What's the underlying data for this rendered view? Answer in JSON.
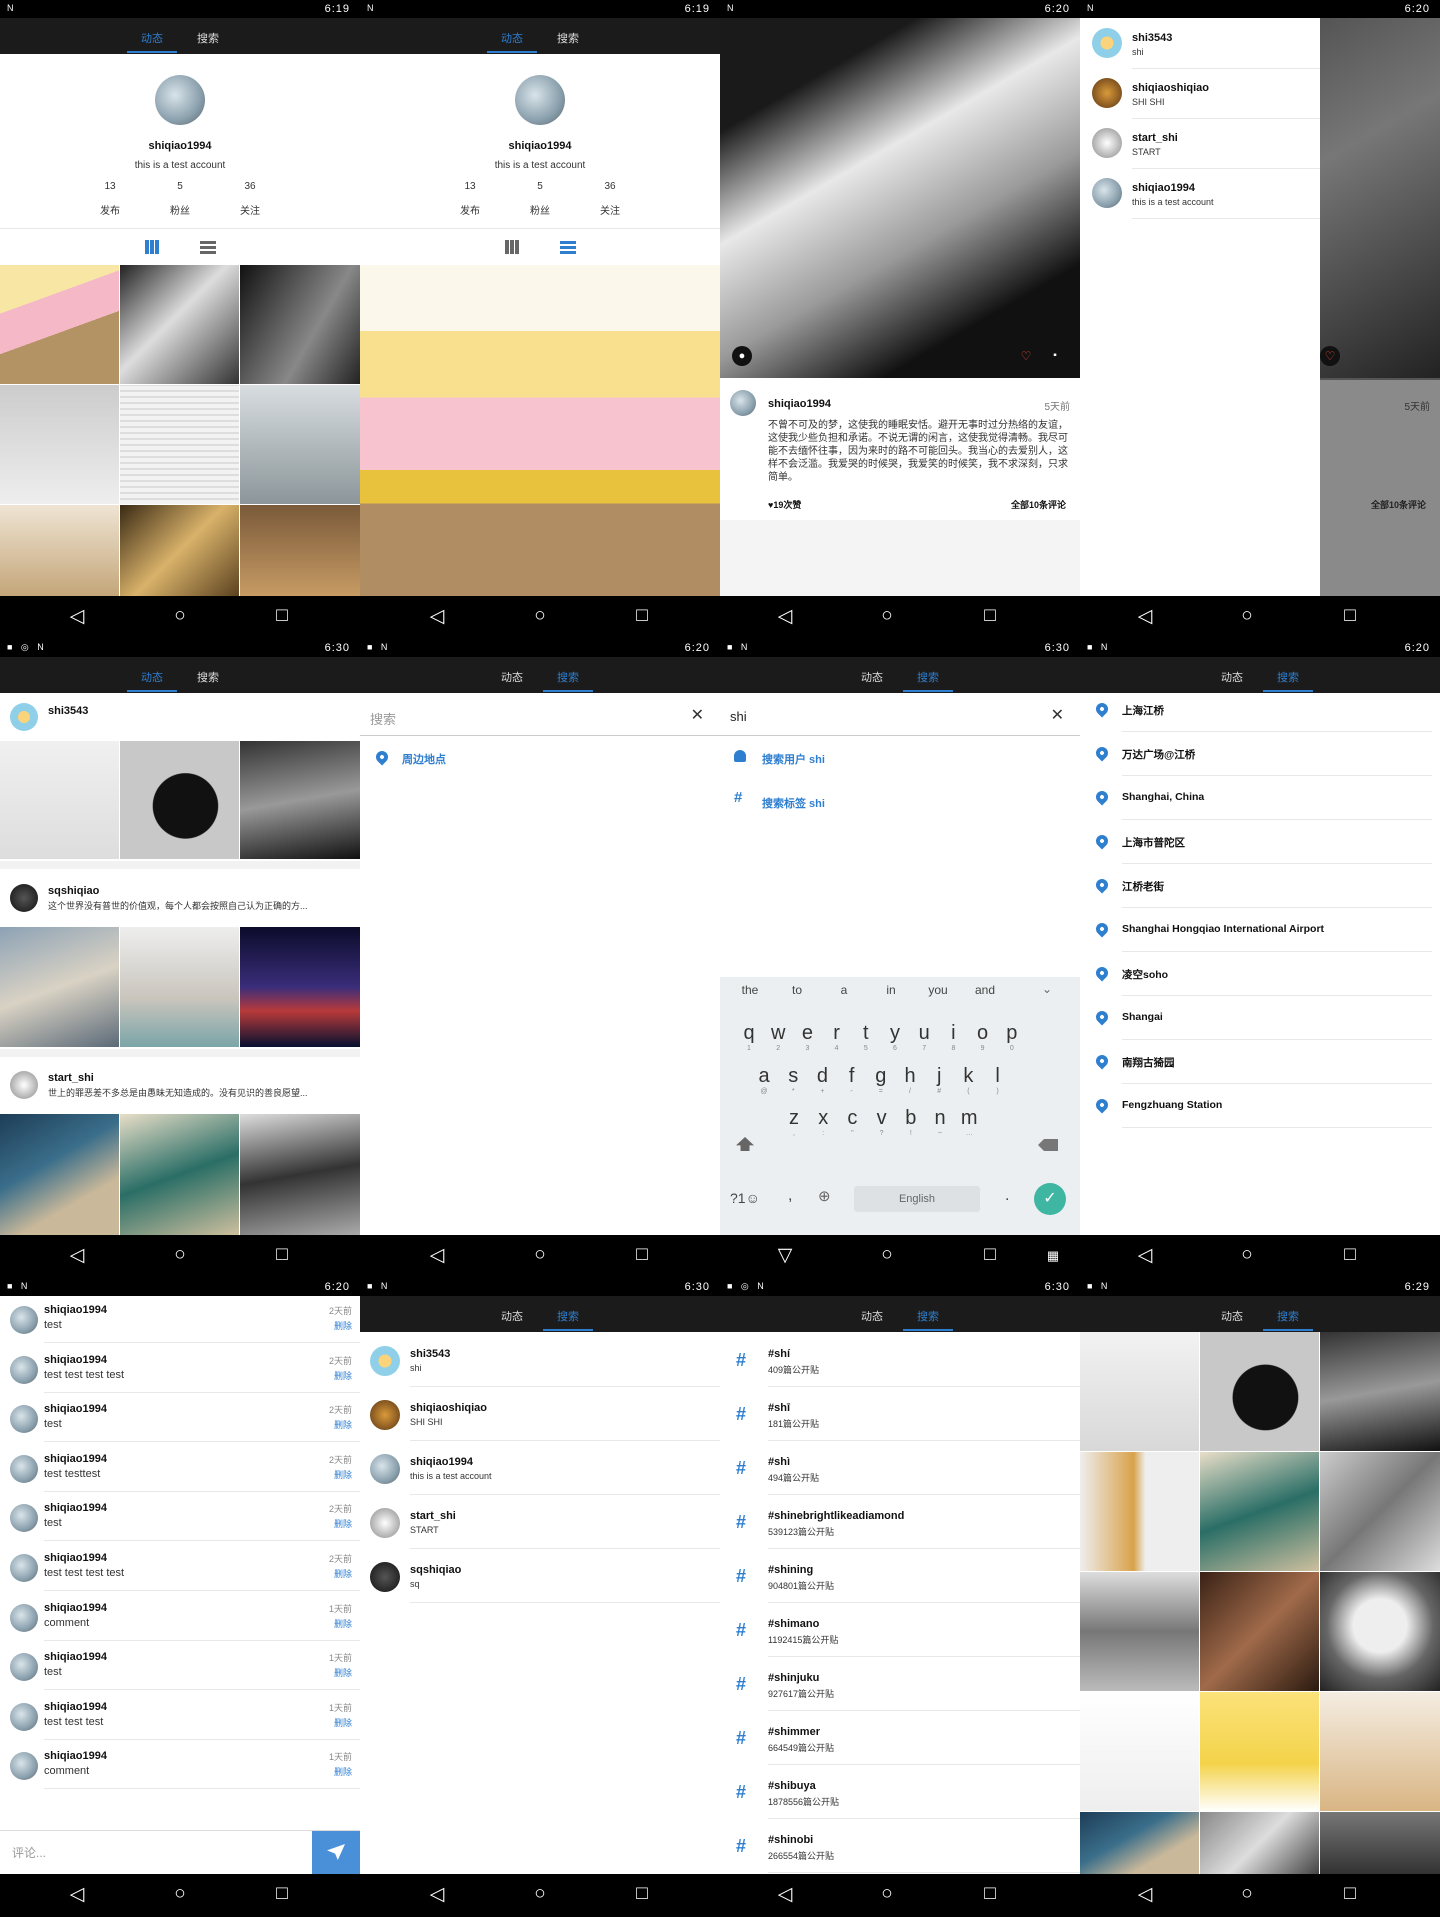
{
  "status": {
    "times": [
      "6:19",
      "6:19",
      "6:20",
      "6:20",
      "6:30",
      "6:20",
      "6:30",
      "6:20",
      "6:20",
      "6:30",
      "6:30",
      "6:29"
    ]
  },
  "tabs": {
    "feed": "动态",
    "search": "搜索"
  },
  "profile": {
    "username": "shiqiao1994",
    "bio": "this is a test account",
    "posts_count": "13",
    "posts_label": "发布",
    "followers_count": "5",
    "followers_label": "粉丝",
    "following_count": "36",
    "following_label": "关注"
  },
  "post": {
    "username": "shiqiao1994",
    "time": "5天前",
    "caption": "不曾不可及的梦，这使我的睡眠安恬。避开无事时过分热络的友谊，这使我少些负担和承诺。不说无谓的闲言，这使我觉得清畅。我尽可能不去缅怀往事，因为来时的路不可能回头。我当心的去爱别人，这样不会泛滥。我爱哭的时候哭，我爱笑的时候笑，我不求深刻，只求简单。",
    "likes": "♥19次赞",
    "comments_link": "全部10条评论"
  },
  "drawer_users": [
    {
      "name": "shi3543",
      "sub": "shi"
    },
    {
      "name": "shiqiaoshiqiao",
      "sub": "SHI SHI"
    },
    {
      "name": "start_shi",
      "sub": "START"
    },
    {
      "name": "shiqiao1994",
      "sub": "this is a test account"
    }
  ],
  "feed_users": [
    {
      "name": "shi3543",
      "caption": ""
    },
    {
      "name": "sqshiqiao",
      "caption": "这个世界没有普世的价值观，每个人都会按照自己认为正确的方..."
    },
    {
      "name": "start_shi",
      "caption": "世上的罪恶差不多总是由愚昧无知造成的。没有见识的善良愿望..."
    }
  ],
  "search": {
    "placeholder": "搜索",
    "nearby": "周边地点",
    "query": "shi",
    "search_user": "搜索用户 shi",
    "search_tag": "搜索标签 shi"
  },
  "keyboard": {
    "suggestions": [
      "the",
      "to",
      "a",
      "in",
      "you",
      "and"
    ],
    "row1": [
      "q",
      "w",
      "e",
      "r",
      "t",
      "y",
      "u",
      "i",
      "o",
      "p"
    ],
    "row1_sub": [
      "1",
      "2",
      "3",
      "4",
      "5",
      "6",
      "7",
      "8",
      "9",
      "0"
    ],
    "row2": [
      "a",
      "s",
      "d",
      "f",
      "g",
      "h",
      "j",
      "k",
      "l"
    ],
    "row2_sub": [
      "@",
      "*",
      "+",
      "-",
      "=",
      "/",
      "#",
      "(",
      ")"
    ],
    "row3": [
      "z",
      "x",
      "c",
      "v",
      "b",
      "n",
      "m"
    ],
    "row3_sub": [
      ",",
      ":",
      "\"",
      "?",
      "!",
      "~",
      "…"
    ],
    "sym": "?1☺",
    "comma": ",",
    "space": "English",
    "period": "."
  },
  "places": [
    "上海江桥",
    "万达广场@江桥",
    "Shanghai, China",
    "上海市普陀区",
    "江桥老街",
    "Shanghai Hongqiao International Airport",
    "凌空soho",
    "Shangai",
    "南翔古猗园",
    "Fengzhuang Station"
  ],
  "comments": [
    {
      "user": "shiqiao1994",
      "text": "test",
      "time": "2天前"
    },
    {
      "user": "shiqiao1994",
      "text": "test test test test",
      "time": "2天前"
    },
    {
      "user": "shiqiao1994",
      "text": "test",
      "time": "2天前"
    },
    {
      "user": "shiqiao1994",
      "text": "test testtest",
      "time": "2天前"
    },
    {
      "user": "shiqiao1994",
      "text": "test",
      "time": "2天前"
    },
    {
      "user": "shiqiao1994",
      "text": "test test test test",
      "time": "2天前"
    },
    {
      "user": "shiqiao1994",
      "text": "comment",
      "time": "1天前"
    },
    {
      "user": "shiqiao1994",
      "text": "test",
      "time": "1天前"
    },
    {
      "user": "shiqiao1994",
      "text": "test test test",
      "time": "1天前"
    },
    {
      "user": "shiqiao1994",
      "text": "comment",
      "time": "1天前"
    }
  ],
  "delete_label": "删除",
  "comment_placeholder": "评论...",
  "user_results": [
    {
      "name": "shi3543",
      "sub": "shi"
    },
    {
      "name": "shiqiaoshiqiao",
      "sub": "SHI SHI"
    },
    {
      "name": "shiqiao1994",
      "sub": "this is a test account"
    },
    {
      "name": "start_shi",
      "sub": "START"
    },
    {
      "name": "sqshiqiao",
      "sub": "sq"
    }
  ],
  "tags": [
    {
      "tag": "#shí",
      "count": "409篇公开贴"
    },
    {
      "tag": "#shī",
      "count": "181篇公开贴"
    },
    {
      "tag": "#shì",
      "count": "494篇公开贴"
    },
    {
      "tag": "#shinebrightlikeadiamond",
      "count": "539123篇公开贴"
    },
    {
      "tag": "#shining",
      "count": "904801篇公开贴"
    },
    {
      "tag": "#shimano",
      "count": "1192415篇公开贴"
    },
    {
      "tag": "#shinjuku",
      "count": "927617篇公开贴"
    },
    {
      "tag": "#shimmer",
      "count": "664549篇公开贴"
    },
    {
      "tag": "#shibuya",
      "count": "1878556篇公开贴"
    },
    {
      "tag": "#shinobi",
      "count": "266554篇公开贴"
    }
  ],
  "colors": {
    "accent": "#2f7fd0",
    "bar": "#1b1b1b"
  }
}
